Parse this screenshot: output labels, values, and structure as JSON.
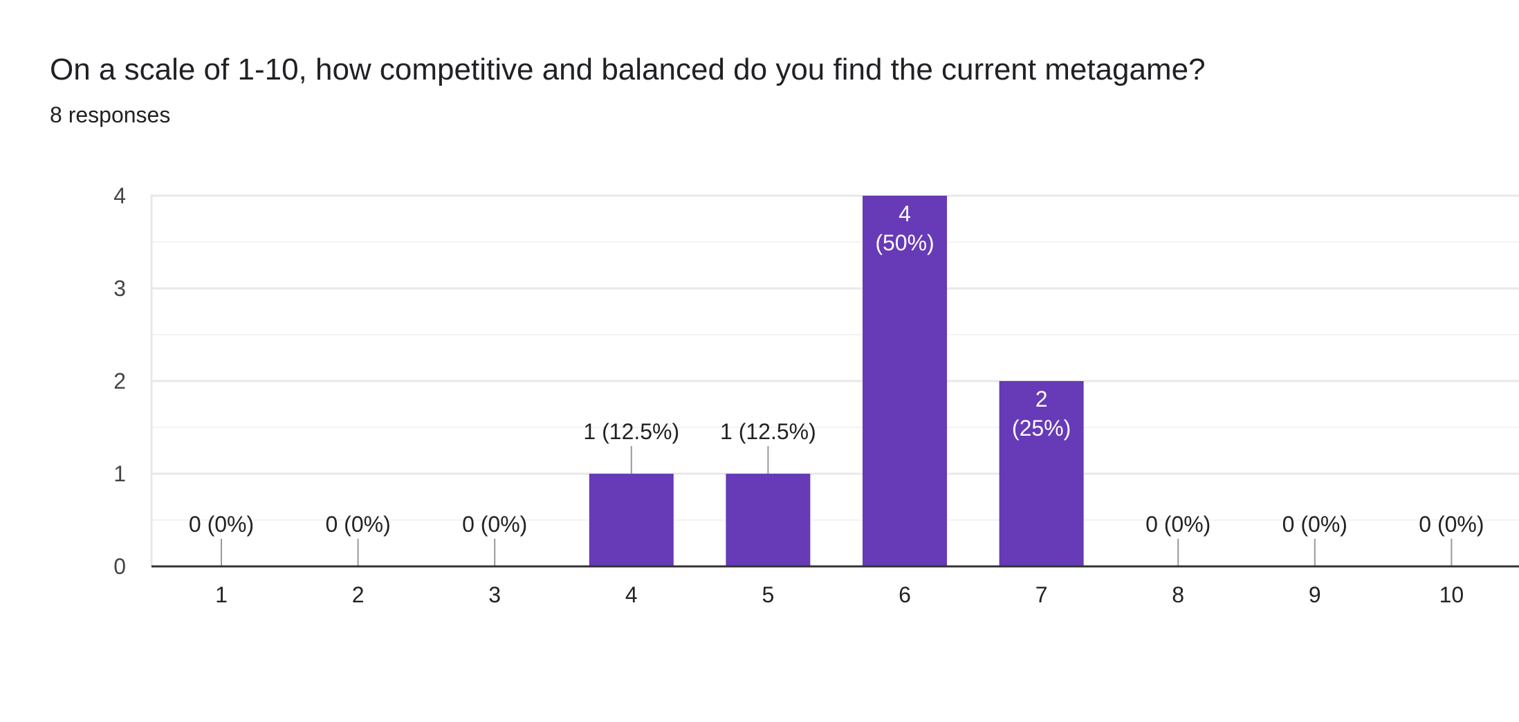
{
  "header": {
    "title": "On a scale of 1-10, how competitive and balanced do you find the current metagame?",
    "responses": "8 responses"
  },
  "colors": {
    "bar": "#673ab7",
    "grid": "#e8e8e8",
    "minor_grid": "#f3f3f3",
    "axis": "#333333",
    "text": "#222222",
    "tick_text": "#444444",
    "inner_label": "#ffffff"
  },
  "chart_data": {
    "type": "bar",
    "title": "On a scale of 1-10, how competitive and balanced do you find the current metagame?",
    "xlabel": "",
    "ylabel": "",
    "categories": [
      "1",
      "2",
      "3",
      "4",
      "5",
      "6",
      "7",
      "8",
      "9",
      "10"
    ],
    "values": [
      0,
      0,
      0,
      1,
      1,
      4,
      2,
      0,
      0,
      0
    ],
    "labels": [
      "0 (0%)",
      "0 (0%)",
      "0 (0%)",
      "1 (12.5%)",
      "1 (12.5%)",
      "4\n(50%)",
      "2\n(25%)",
      "0 (0%)",
      "0 (0%)",
      "0 (0%)"
    ],
    "label_inside": [
      false,
      false,
      false,
      false,
      false,
      true,
      true,
      false,
      false,
      false
    ],
    "ylim": [
      0,
      4
    ],
    "yticks": [
      "0",
      "1",
      "2",
      "3",
      "4"
    ],
    "grid": true,
    "legend": "none"
  }
}
